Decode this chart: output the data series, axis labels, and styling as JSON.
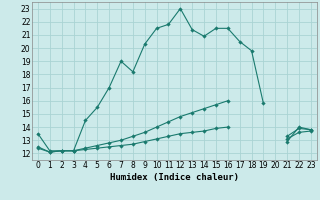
{
  "title": "",
  "xlabel": "Humidex (Indice chaleur)",
  "bg_color": "#cceaea",
  "grid_color": "#aad4d4",
  "line_color": "#1a7a6e",
  "xlim": [
    -0.5,
    23.5
  ],
  "ylim": [
    11.5,
    23.5
  ],
  "xticks": [
    0,
    1,
    2,
    3,
    4,
    5,
    6,
    7,
    8,
    9,
    10,
    11,
    12,
    13,
    14,
    15,
    16,
    17,
    18,
    19,
    20,
    21,
    22,
    23
  ],
  "yticks": [
    12,
    13,
    14,
    15,
    16,
    17,
    18,
    19,
    20,
    21,
    22,
    23
  ],
  "series1_x": [
    0,
    1,
    2,
    3,
    4,
    5,
    6,
    7,
    8,
    9,
    10,
    11,
    12,
    13,
    14,
    15,
    16,
    17,
    18,
    19,
    20,
    21,
    22,
    23
  ],
  "series1_y": [
    13.5,
    12.2,
    12.2,
    12.2,
    14.5,
    15.5,
    17.0,
    19.0,
    18.2,
    20.3,
    21.5,
    21.8,
    23.0,
    21.4,
    20.9,
    21.5,
    21.5,
    20.5,
    19.8,
    15.8,
    null,
    12.9,
    14.0,
    13.8
  ],
  "series2_x": [
    0,
    1,
    2,
    3,
    4,
    5,
    6,
    7,
    8,
    9,
    10,
    11,
    12,
    13,
    14,
    15,
    16,
    17,
    18,
    19,
    20,
    21,
    22,
    23
  ],
  "series2_y": [
    12.5,
    12.1,
    12.2,
    12.2,
    12.4,
    12.6,
    12.8,
    13.0,
    13.3,
    13.6,
    14.0,
    14.4,
    14.8,
    15.1,
    15.4,
    15.7,
    16.0,
    null,
    null,
    null,
    null,
    13.3,
    13.9,
    13.8
  ],
  "series3_x": [
    0,
    1,
    2,
    3,
    4,
    5,
    6,
    7,
    8,
    9,
    10,
    11,
    12,
    13,
    14,
    15,
    16,
    17,
    18,
    19,
    20,
    21,
    22,
    23
  ],
  "series3_y": [
    12.4,
    12.1,
    12.2,
    12.2,
    12.3,
    12.4,
    12.5,
    12.6,
    12.7,
    12.9,
    13.1,
    13.3,
    13.5,
    13.6,
    13.7,
    13.9,
    14.0,
    null,
    null,
    null,
    null,
    13.1,
    13.6,
    13.7
  ]
}
